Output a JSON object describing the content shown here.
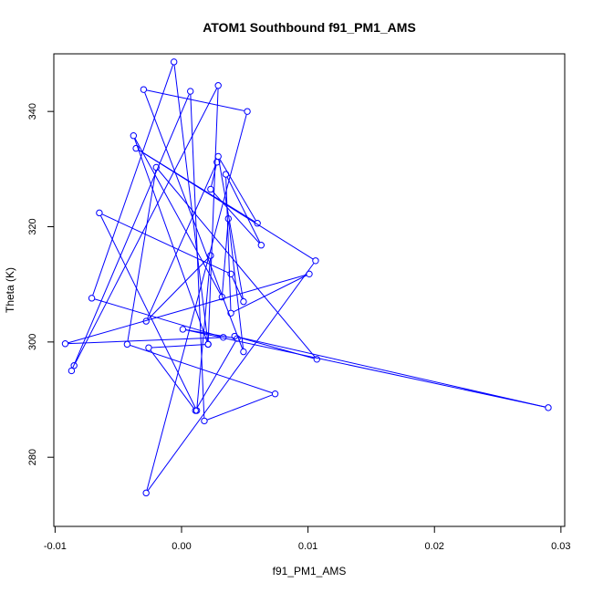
{
  "chart_data": {
    "type": "line",
    "title": "ATOM1 Southbound f91_PM1_AMS",
    "xlabel": "f91_PM1_AMS",
    "ylabel": "Theta (K)",
    "xlim": [
      -0.0101,
      0.0303
    ],
    "ylim": [
      268,
      350
    ],
    "x_ticks": [
      -0.01,
      0.0,
      0.01,
      0.02,
      0.03
    ],
    "x_tick_labels": [
      "-0.01",
      "0.00",
      "0.01",
      "0.02",
      "0.03"
    ],
    "y_ticks": [
      280,
      300,
      320,
      340
    ],
    "y_tick_labels": [
      "280",
      "300",
      "320",
      "340"
    ],
    "grid": false,
    "legend": "none",
    "marker": "open-circle",
    "series_color": "#0000ff",
    "series": [
      {
        "x": [
          -0.0087,
          0.0007,
          0.0018,
          0.0074,
          -0.0043,
          -0.002,
          0.0107,
          0.0042,
          0.029,
          0.0001,
          0.0044,
          0.0011,
          -0.0026,
          0.0021,
          -0.0038,
          0.0032,
          0.0037,
          0.0049,
          -0.003,
          0.0052,
          -0.0028,
          0.0106,
          -0.0036,
          0.006,
          0.0029,
          0.0049,
          0.0039,
          -0.0065,
          0.0012,
          0.0023,
          -0.0028,
          0.0028,
          0.0023,
          0.0063,
          0.0035,
          0.0039,
          0.0101,
          -0.0092,
          0.0033,
          -0.0071,
          -0.0006,
          0.0021,
          0.0029,
          -0.0085
        ],
        "y": [
          295.0,
          343.5,
          286.3,
          291.0,
          299.6,
          330.3,
          297.0,
          301.0,
          288.6,
          302.2,
          300.6,
          288.1,
          299.0,
          299.6,
          335.8,
          307.8,
          321.4,
          298.3,
          343.8,
          340.0,
          273.8,
          314.1,
          333.6,
          320.6,
          332.2,
          307.0,
          311.8,
          322.4,
          288.1,
          315.0,
          303.6,
          331.2,
          326.5,
          316.8,
          329.1,
          305.0,
          311.8,
          299.7,
          300.8,
          307.6,
          348.6,
          299.6,
          344.5,
          295.9
        ]
      }
    ]
  }
}
